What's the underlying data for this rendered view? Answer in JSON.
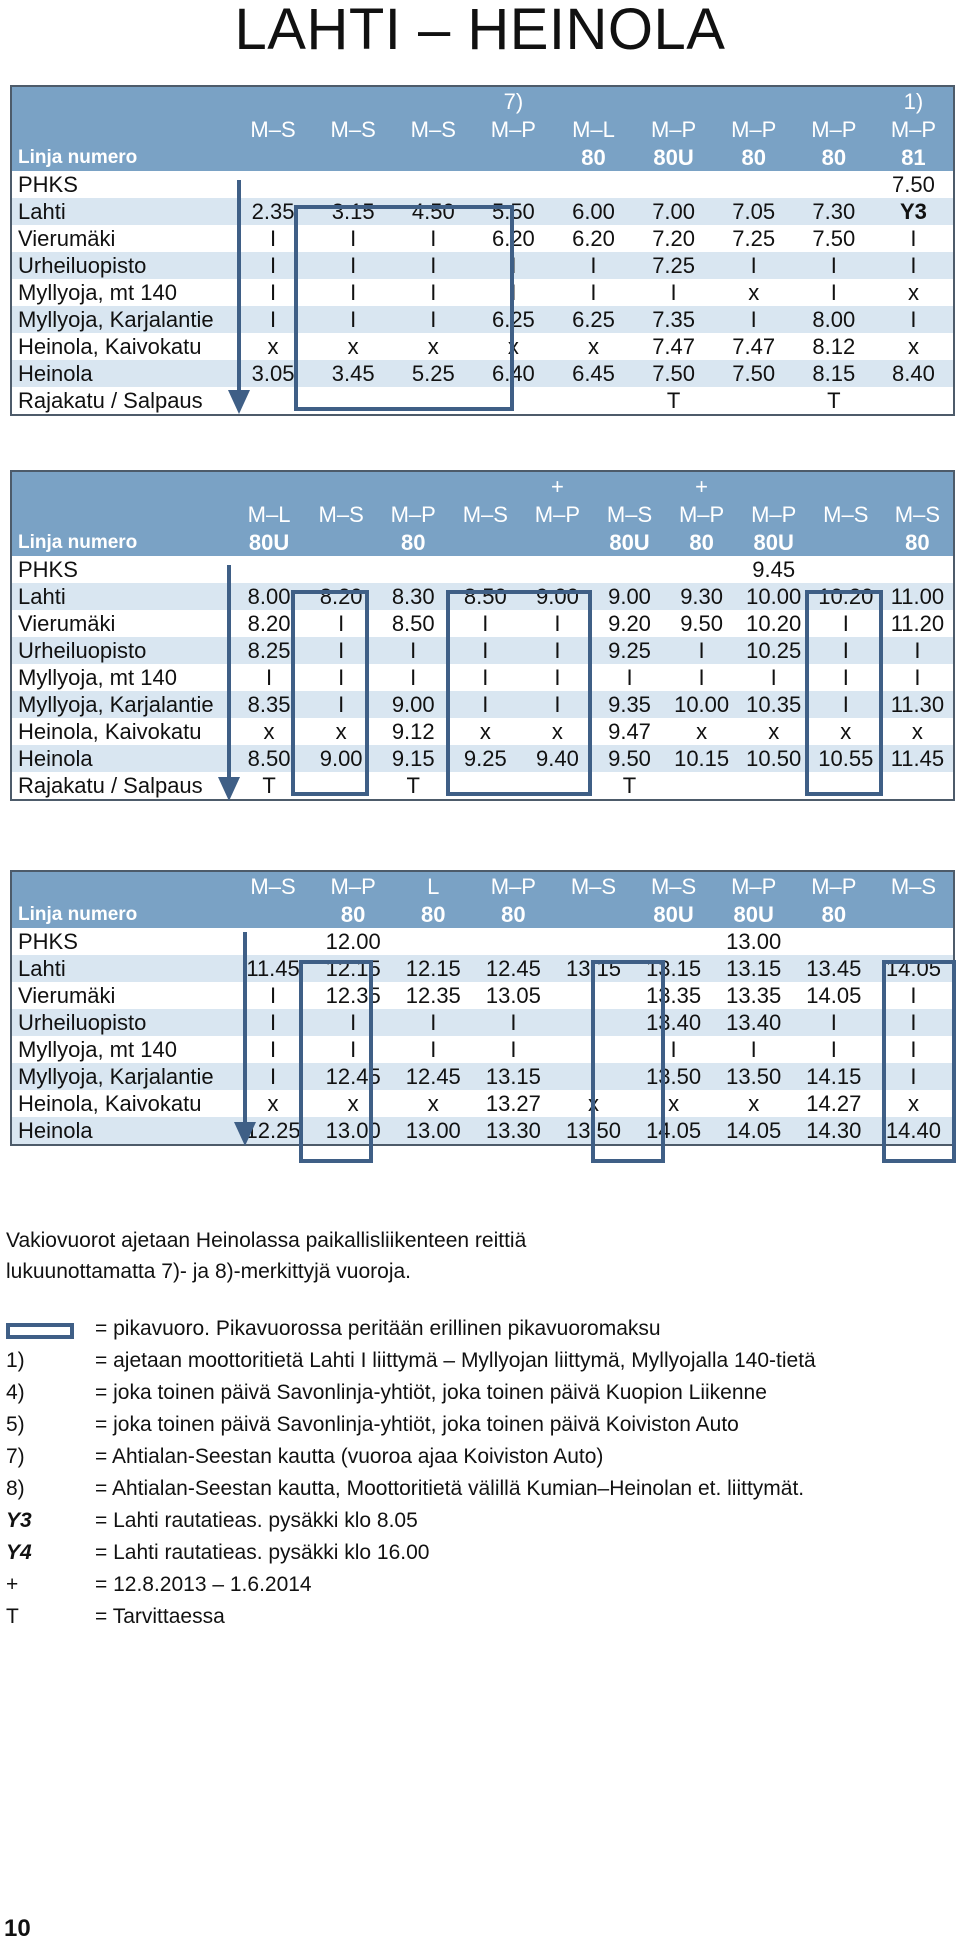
{
  "title": "LAHTI – HEINOLA",
  "tables": [
    {
      "notes_row": [
        "",
        "",
        "",
        "7)",
        "",
        "",
        "",
        "",
        "1)"
      ],
      "days": [
        "M–S",
        "M–S",
        "M–S",
        "M–P",
        "M–L",
        "M–P",
        "M–P",
        "M–P",
        "M–P"
      ],
      "line_label": "Linja numero",
      "line_numbers": [
        "",
        "",
        "",
        "",
        "80",
        "80U",
        "80",
        "80",
        "81"
      ],
      "rows": [
        {
          "stop": "PHKS",
          "times": [
            "",
            "",
            "",
            "",
            "",
            "",
            "",
            "",
            "7.50"
          ]
        },
        {
          "stop": "Lahti",
          "times": [
            "2.35",
            "3.15",
            "4.50",
            "5.50",
            "6.00",
            "7.00",
            "7.05",
            "7.30",
            "Y3"
          ]
        },
        {
          "stop": "Vierumäki",
          "times": [
            "I",
            "I",
            "I",
            "6.20",
            "6.20",
            "7.20",
            "7.25",
            "7.50",
            "I"
          ]
        },
        {
          "stop": "Urheiluopisto",
          "times": [
            "I",
            "I",
            "I",
            "I",
            "I",
            "7.25",
            "I",
            "I",
            "I"
          ]
        },
        {
          "stop": "Myllyoja, mt 140",
          "times": [
            "I",
            "I",
            "I",
            "I",
            "I",
            "I",
            "x",
            "I",
            "x"
          ]
        },
        {
          "stop": "Myllyoja, Karjalantie",
          "times": [
            "I",
            "I",
            "I",
            "6.25",
            "6.25",
            "7.35",
            "I",
            "8.00",
            "I"
          ]
        },
        {
          "stop": "Heinola, Kaivokatu",
          "times": [
            "x",
            "x",
            "x",
            "x",
            "x",
            "7.47",
            "7.47",
            "8.12",
            "x"
          ]
        },
        {
          "stop": "Heinola",
          "times": [
            "3.05",
            "3.45",
            "5.25",
            "6.40",
            "6.45",
            "7.50",
            "7.50",
            "8.15",
            "8.40"
          ]
        },
        {
          "stop": "Rajakatu / Salpaus",
          "times": [
            "",
            "",
            "",
            "",
            "",
            "T",
            "",
            "T",
            ""
          ]
        }
      ]
    },
    {
      "notes_row": [
        "",
        "",
        "",
        "",
        "+",
        "",
        "+",
        "",
        "",
        ""
      ],
      "days": [
        "M–L",
        "M–S",
        "M–P",
        "M–S",
        "M–P",
        "M–S",
        "M–P",
        "M–P",
        "M–S",
        "M–S"
      ],
      "line_label": "Linja numero",
      "line_numbers": [
        "80U",
        "",
        "80",
        "",
        "",
        "80U",
        "80",
        "80U",
        "",
        "80"
      ],
      "rows": [
        {
          "stop": "PHKS",
          "times": [
            "",
            "",
            "",
            "",
            "",
            "",
            "",
            "9.45",
            "",
            ""
          ]
        },
        {
          "stop": "Lahti",
          "times": [
            "8.00",
            "8.20",
            "8.30",
            "8.50",
            "9.00",
            "9.00",
            "9.30",
            "10.00",
            "10.20",
            "11.00"
          ]
        },
        {
          "stop": "Vierumäki",
          "times": [
            "8.20",
            "I",
            "8.50",
            "I",
            "I",
            "9.20",
            "9.50",
            "10.20",
            "I",
            "11.20"
          ]
        },
        {
          "stop": "Urheiluopisto",
          "times": [
            "8.25",
            "I",
            "I",
            "I",
            "I",
            "9.25",
            "I",
            "10.25",
            "I",
            "I"
          ]
        },
        {
          "stop": "Myllyoja, mt 140",
          "times": [
            "I",
            "I",
            "I",
            "I",
            "I",
            "I",
            "I",
            "I",
            "I",
            "I"
          ]
        },
        {
          "stop": "Myllyoja, Karjalantie",
          "times": [
            "8.35",
            "I",
            "9.00",
            "I",
            "I",
            "9.35",
            "10.00",
            "10.35",
            "I",
            "11.30"
          ]
        },
        {
          "stop": "Heinola, Kaivokatu",
          "times": [
            "x",
            "x",
            "9.12",
            "x",
            "x",
            "9.47",
            "x",
            "x",
            "x",
            "x"
          ]
        },
        {
          "stop": "Heinola",
          "times": [
            "8.50",
            "9.00",
            "9.15",
            "9.25",
            "9.40",
            "9.50",
            "10.15",
            "10.50",
            "10.55",
            "11.45"
          ]
        },
        {
          "stop": "Rajakatu / Salpaus",
          "times": [
            "T",
            "",
            "T",
            "",
            "",
            "T",
            "",
            "",
            "",
            ""
          ]
        }
      ]
    },
    {
      "days": [
        "M–S",
        "M–P",
        "L",
        "M–P",
        "M–S",
        "M–S",
        "M–P",
        "M–P",
        "M–S"
      ],
      "line_label": "Linja numero",
      "line_numbers": [
        "",
        "80",
        "80",
        "80",
        "",
        "80U",
        "80U",
        "80",
        ""
      ],
      "rows": [
        {
          "stop": "PHKS",
          "times": [
            "",
            "12.00",
            "",
            "",
            "",
            "",
            "13.00",
            "",
            ""
          ]
        },
        {
          "stop": "Lahti",
          "times": [
            "11.45",
            "12.15",
            "12.15",
            "12.45",
            "13.15",
            "13.15",
            "13.15",
            "13.45",
            "14.05"
          ]
        },
        {
          "stop": "Vierumäki",
          "times": [
            "I",
            "12.35",
            "12.35",
            "13.05",
            "I",
            "13.35",
            "13.35",
            "14.05",
            "I"
          ]
        },
        {
          "stop": "Urheiluopisto",
          "times": [
            "I",
            "I",
            "I",
            "I",
            "I",
            "13.40",
            "13.40",
            "I",
            "I"
          ]
        },
        {
          "stop": "Myllyoja, mt 140",
          "times": [
            "I",
            "I",
            "I",
            "I",
            "I",
            "I",
            "I",
            "I",
            "I"
          ]
        },
        {
          "stop": "Myllyoja, Karjalantie",
          "times": [
            "I",
            "12.45",
            "12.45",
            "13.15",
            "I",
            "13.50",
            "13.50",
            "14.15",
            "I"
          ]
        },
        {
          "stop": "Heinola, Kaivokatu",
          "times": [
            "x",
            "x",
            "x",
            "13.27",
            "x",
            "x",
            "x",
            "14.27",
            "x"
          ]
        },
        {
          "stop": "Heinola",
          "times": [
            "12.25",
            "13.00",
            "13.00",
            "13.30",
            "13.50",
            "14.05",
            "14.05",
            "14.30",
            "14.40"
          ]
        }
      ]
    }
  ],
  "notes": [
    "Vakiovuorot ajetaan Heinolassa paikallisliikenteen reittiä",
    "lukuunottamatta 7)- ja 8)-merkittyjä vuoroja."
  ],
  "legend": [
    {
      "key": "",
      "text": "= pikavuoro. Pikavuorossa peritään erillinen pikavuoromaksu"
    },
    {
      "key": "1)",
      "text": "= ajetaan moottoritietä Lahti I liittymä – Myllyojan liittymä, Myllyojalla 140-tietä"
    },
    {
      "key": "4)",
      "text": "= joka toinen päivä Savonlinja-yhtiöt, joka toinen päivä Kuopion Liikenne"
    },
    {
      "key": "5)",
      "text": "= joka toinen päivä Savonlinja-yhtiöt, joka toinen päivä Koiviston Auto"
    },
    {
      "key": "7)",
      "text": "= Ahtialan-Seestan kautta (vuoroa ajaa Koiviston Auto)"
    },
    {
      "key": "8)",
      "text": "=  Ahtialan-Seestan kautta, Moottoritietä välillä Kumian–Heinolan et. liittymät."
    },
    {
      "key": "Y3",
      "text": "= Lahti rautatieas. pysäkki klo 8.05"
    },
    {
      "key": "Y4",
      "text": "=  Lahti rautatieas. pysäkki klo 16.00"
    },
    {
      "key": "+",
      "text": "= 12.8.2013 – 1.6.2014"
    },
    {
      "key": "T",
      "text": "=  Tarvittaessa"
    }
  ],
  "page_number": "10",
  "colors": {
    "header_bg": "#7aa2c5",
    "stripe": "#d9e6f1",
    "frame": "#3f5f86"
  }
}
